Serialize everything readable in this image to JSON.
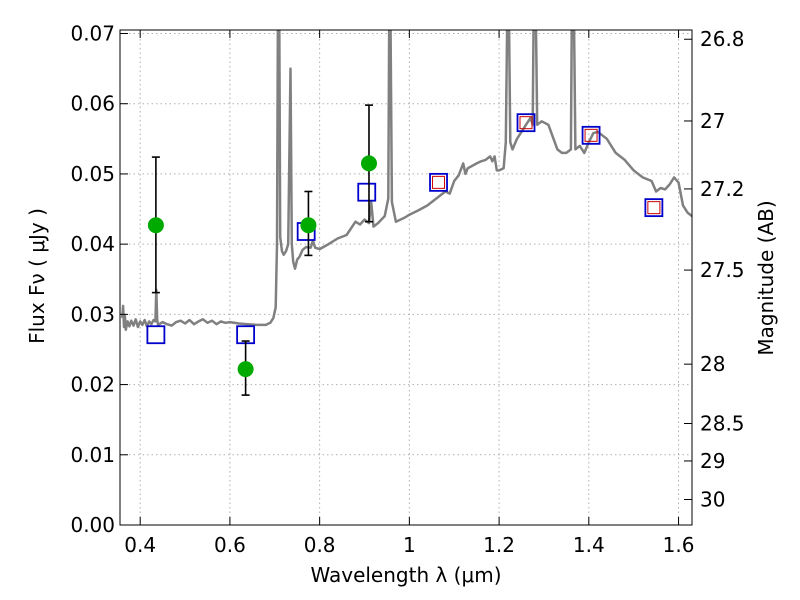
{
  "chart_data": {
    "type": "scatter",
    "xlabel": "Wavelength  λ (μm)",
    "ylabel_left": "Flux  Fν  ( μJy )",
    "ylabel_right": "Magnitude (AB)",
    "xlim": [
      0.355,
      1.63
    ],
    "ylim": [
      0.0,
      0.0705
    ],
    "grid": true,
    "x_ticks": [
      "0.4",
      "0.6",
      "0.8",
      "1",
      "1.2",
      "1.4",
      "1.6"
    ],
    "x_tick_values": [
      0.4,
      0.6,
      0.8,
      1.0,
      1.2,
      1.4,
      1.6
    ],
    "y_ticks": [
      "0.00",
      "0.01",
      "0.02",
      "0.03",
      "0.04",
      "0.05",
      "0.06",
      "0.07"
    ],
    "y_tick_values": [
      0.0,
      0.01,
      0.02,
      0.03,
      0.04,
      0.05,
      0.06,
      0.07
    ],
    "right_ticks": [
      "26.8",
      "27",
      "27.2",
      "27.5",
      "28",
      "28.5",
      "29",
      "30"
    ],
    "right_tick_values": [
      26.8,
      27.0,
      27.2,
      27.5,
      28.0,
      28.5,
      29.0,
      30.0
    ],
    "colors": {
      "spectrum": "#808080",
      "observed": "#00aa00",
      "errorbar": "#000000",
      "model_band": "#0000cc",
      "model_band_inner": "#cc0000",
      "grid": "#b0b0b0"
    },
    "series": [
      {
        "role": "spectrum",
        "points": [
          [
            0.36,
            0.0295
          ],
          [
            0.362,
            0.0312
          ],
          [
            0.364,
            0.0282
          ],
          [
            0.366,
            0.0298
          ],
          [
            0.368,
            0.0278
          ],
          [
            0.372,
            0.029
          ],
          [
            0.376,
            0.0283
          ],
          [
            0.38,
            0.0291
          ],
          [
            0.385,
            0.0284
          ],
          [
            0.39,
            0.0293
          ],
          [
            0.395,
            0.0282
          ],
          [
            0.4,
            0.029
          ],
          [
            0.405,
            0.0285
          ],
          [
            0.41,
            0.0292
          ],
          [
            0.415,
            0.0283
          ],
          [
            0.42,
            0.029
          ],
          [
            0.425,
            0.0286
          ],
          [
            0.43,
            0.0292
          ],
          [
            0.434,
            0.029
          ],
          [
            0.436,
            0.0335
          ],
          [
            0.438,
            0.0292
          ],
          [
            0.44,
            0.0285
          ],
          [
            0.45,
            0.0289
          ],
          [
            0.46,
            0.0286
          ],
          [
            0.47,
            0.0284
          ],
          [
            0.48,
            0.0289
          ],
          [
            0.49,
            0.0291
          ],
          [
            0.5,
            0.0287
          ],
          [
            0.51,
            0.0292
          ],
          [
            0.52,
            0.0286
          ],
          [
            0.53,
            0.029
          ],
          [
            0.54,
            0.0293
          ],
          [
            0.55,
            0.0288
          ],
          [
            0.56,
            0.0291
          ],
          [
            0.57,
            0.0286
          ],
          [
            0.58,
            0.029
          ],
          [
            0.59,
            0.0288
          ],
          [
            0.6,
            0.0289
          ],
          [
            0.62,
            0.0287
          ],
          [
            0.64,
            0.0286
          ],
          [
            0.66,
            0.0285
          ],
          [
            0.68,
            0.0285
          ],
          [
            0.69,
            0.0288
          ],
          [
            0.697,
            0.0295
          ],
          [
            0.702,
            0.031
          ],
          [
            0.705,
            0.04
          ],
          [
            0.707,
            0.072
          ],
          [
            0.71,
            0.072
          ],
          [
            0.712,
            0.041
          ],
          [
            0.716,
            0.039
          ],
          [
            0.72,
            0.0385
          ],
          [
            0.725,
            0.039
          ],
          [
            0.73,
            0.04
          ],
          [
            0.735,
            0.065
          ],
          [
            0.738,
            0.04
          ],
          [
            0.741,
            0.0375
          ],
          [
            0.745,
            0.0365
          ],
          [
            0.75,
            0.0378
          ],
          [
            0.755,
            0.0382
          ],
          [
            0.762,
            0.0392
          ],
          [
            0.77,
            0.0396
          ],
          [
            0.78,
            0.0395
          ],
          [
            0.785,
            0.0405
          ],
          [
            0.79,
            0.0395
          ],
          [
            0.8,
            0.0393
          ],
          [
            0.82,
            0.04
          ],
          [
            0.84,
            0.0408
          ],
          [
            0.86,
            0.0413
          ],
          [
            0.88,
            0.0432
          ],
          [
            0.89,
            0.0428
          ],
          [
            0.9,
            0.0435
          ],
          [
            0.91,
            0.043
          ],
          [
            0.915,
            0.046
          ],
          [
            0.92,
            0.0425
          ],
          [
            0.93,
            0.043
          ],
          [
            0.945,
            0.044
          ],
          [
            0.953,
            0.0465
          ],
          [
            0.955,
            0.072
          ],
          [
            0.958,
            0.072
          ],
          [
            0.961,
            0.046
          ],
          [
            0.97,
            0.0432
          ],
          [
            0.99,
            0.0438
          ],
          [
            1.0,
            0.0442
          ],
          [
            1.02,
            0.0448
          ],
          [
            1.04,
            0.0455
          ],
          [
            1.06,
            0.0465
          ],
          [
            1.08,
            0.0475
          ],
          [
            1.09,
            0.0472
          ],
          [
            1.1,
            0.049
          ],
          [
            1.11,
            0.0498
          ],
          [
            1.12,
            0.0515
          ],
          [
            1.125,
            0.05
          ],
          [
            1.13,
            0.0508
          ],
          [
            1.15,
            0.0515
          ],
          [
            1.16,
            0.0518
          ],
          [
            1.17,
            0.052
          ],
          [
            1.18,
            0.0525
          ],
          [
            1.185,
            0.0518
          ],
          [
            1.19,
            0.0525
          ],
          [
            1.195,
            0.0505
          ],
          [
            1.2,
            0.0505
          ],
          [
            1.21,
            0.0508
          ],
          [
            1.215,
            0.0545
          ],
          [
            1.218,
            0.072
          ],
          [
            1.222,
            0.072
          ],
          [
            1.225,
            0.0545
          ],
          [
            1.23,
            0.0535
          ],
          [
            1.24,
            0.055
          ],
          [
            1.25,
            0.056
          ],
          [
            1.26,
            0.057
          ],
          [
            1.27,
            0.058
          ],
          [
            1.275,
            0.057
          ],
          [
            1.277,
            0.072
          ],
          [
            1.282,
            0.072
          ],
          [
            1.285,
            0.057
          ],
          [
            1.295,
            0.0575
          ],
          [
            1.31,
            0.057
          ],
          [
            1.33,
            0.0535
          ],
          [
            1.34,
            0.053
          ],
          [
            1.35,
            0.053
          ],
          [
            1.36,
            0.0535
          ],
          [
            1.362,
            0.072
          ],
          [
            1.367,
            0.072
          ],
          [
            1.37,
            0.0535
          ],
          [
            1.38,
            0.054
          ],
          [
            1.39,
            0.053
          ],
          [
            1.4,
            0.0545
          ],
          [
            1.41,
            0.0558
          ],
          [
            1.42,
            0.056
          ],
          [
            1.44,
            0.055
          ],
          [
            1.46,
            0.053
          ],
          [
            1.48,
            0.052
          ],
          [
            1.5,
            0.0505
          ],
          [
            1.52,
            0.0495
          ],
          [
            1.54,
            0.049
          ],
          [
            1.55,
            0.0475
          ],
          [
            1.56,
            0.048
          ],
          [
            1.57,
            0.0478
          ],
          [
            1.58,
            0.0485
          ],
          [
            1.59,
            0.0495
          ],
          [
            1.6,
            0.0488
          ],
          [
            1.61,
            0.0455
          ],
          [
            1.62,
            0.0445
          ],
          [
            1.63,
            0.044
          ]
        ]
      },
      {
        "role": "observed_photometry",
        "points": [
          {
            "x": 0.435,
            "y": 0.0427,
            "err_low": 0.0331,
            "err_high": 0.0524
          },
          {
            "x": 0.635,
            "y": 0.0222,
            "err_low": 0.0185,
            "err_high": 0.0262
          },
          {
            "x": 0.775,
            "y": 0.0427,
            "err_low": 0.0384,
            "err_high": 0.0475
          },
          {
            "x": 0.91,
            "y": 0.0515,
            "err_low": 0.0432,
            "err_high": 0.0598
          }
        ]
      },
      {
        "role": "model_photometry",
        "points": [
          {
            "x": 0.435,
            "y": 0.0271
          },
          {
            "x": 0.635,
            "y": 0.0271
          },
          {
            "x": 0.77,
            "y": 0.0418
          },
          {
            "x": 0.905,
            "y": 0.0474
          },
          {
            "x": 1.065,
            "y": 0.0488,
            "inner": true
          },
          {
            "x": 1.26,
            "y": 0.0573,
            "inner": true
          },
          {
            "x": 1.405,
            "y": 0.0555,
            "inner": true
          },
          {
            "x": 1.545,
            "y": 0.0452,
            "inner": true
          }
        ]
      }
    ]
  }
}
